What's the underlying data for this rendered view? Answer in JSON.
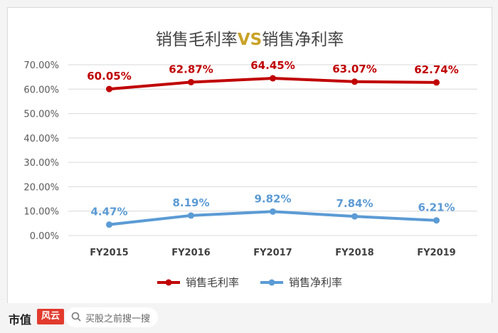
{
  "chart_data": {
    "type": "line",
    "title_parts": [
      "销售毛利率",
      "VS",
      "销售净利率"
    ],
    "categories": [
      "FY2015",
      "FY2016",
      "FY2017",
      "FY2018",
      "FY2019"
    ],
    "ylim": [
      0,
      70
    ],
    "y_ticks": [
      "0.00%",
      "10.00%",
      "20.00%",
      "30.00%",
      "40.00%",
      "50.00%",
      "60.00%",
      "70.00%"
    ],
    "grid": true,
    "legend_position": "bottom",
    "series": [
      {
        "name": "销售毛利率",
        "values": [
          60.05,
          62.87,
          64.45,
          63.07,
          62.74
        ],
        "labels": [
          "60.05%",
          "62.87%",
          "64.45%",
          "63.07%",
          "62.74%"
        ],
        "color": "#c00000"
      },
      {
        "name": "销售净利率",
        "values": [
          4.47,
          8.19,
          9.82,
          7.84,
          6.21
        ],
        "labels": [
          "4.47%",
          "8.19%",
          "9.82%",
          "7.84%",
          "6.21%"
        ],
        "color": "#5b9bd5"
      }
    ],
    "title_vs_color": "#c9a227"
  },
  "footer": {
    "brand": "市值",
    "brand_stamp": "风云",
    "search_placeholder": "买股之前搜一搜"
  }
}
